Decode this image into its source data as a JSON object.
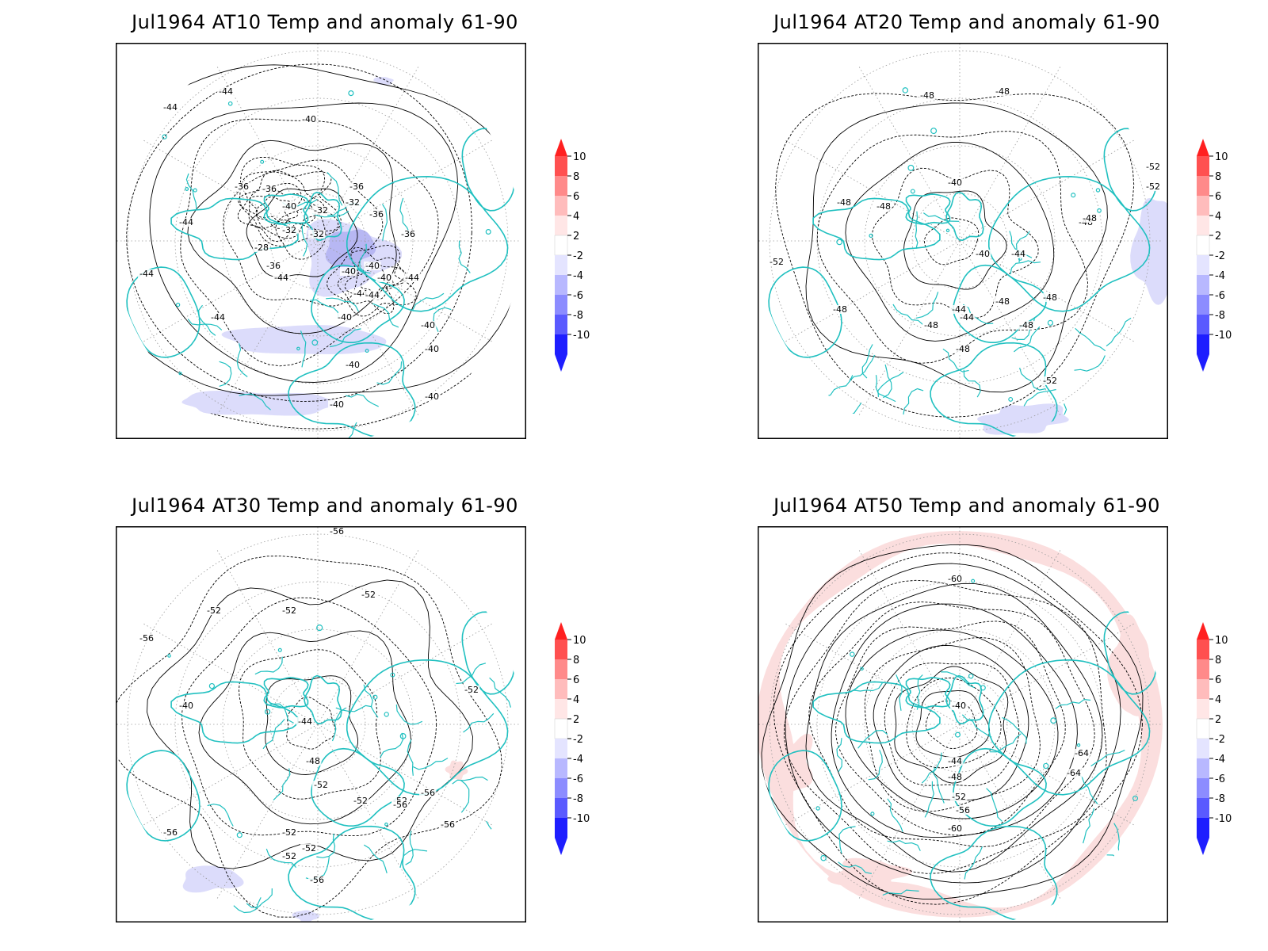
{
  "panels": [
    {
      "title": "Jul1964 AT10 Temp and anomaly 61-90",
      "contour_labels": [
        "-44",
        "-44",
        "-40",
        "-36",
        "-36",
        "-36",
        "-40",
        "-32",
        "-32",
        "-32",
        "-32",
        "-36",
        "-36",
        "-28",
        "-36",
        "-40",
        "-40",
        "-40",
        "-44",
        "-44",
        "-40",
        "-44",
        "-40",
        "-40",
        "-44",
        "-40",
        "-40",
        "-40",
        "-44",
        "-44",
        "-44"
      ],
      "anomaly_patches": [
        {
          "sign": "negative",
          "level": "-4",
          "region": "pole / Greenland"
        },
        {
          "sign": "negative",
          "level": "-2",
          "region": "North Atlantic"
        },
        {
          "sign": "negative",
          "level": "-2",
          "region": "tropical Pacific"
        }
      ]
    },
    {
      "title": "Jul1964 AT20 Temp and anomaly 61-90",
      "contour_labels": [
        "-48",
        "-48",
        "-48",
        "-40",
        "-48",
        "-40",
        "-44",
        "-48",
        "-52",
        "-52",
        "-52",
        "-48",
        "-44",
        "-44",
        "-48",
        "-48",
        "-48",
        "-48",
        "-48",
        "-48",
        "-52"
      ],
      "anomaly_patches": [
        {
          "sign": "negative",
          "level": "-2",
          "region": "Pacific rim"
        },
        {
          "sign": "negative",
          "level": "-2",
          "region": "Indian Ocean"
        }
      ]
    },
    {
      "title": "Jul1964 AT30 Temp and anomaly 61-90",
      "contour_labels": [
        "-56",
        "-52",
        "-52",
        "-52",
        "-56",
        "-52",
        "-40",
        "-44",
        "-48",
        "-52",
        "-56",
        "-52",
        "-52",
        "-52",
        "-56",
        "-56",
        "-52",
        "-52",
        "-56",
        "-56"
      ],
      "anomaly_patches": [
        {
          "sign": "negative",
          "level": "-2",
          "region": "tropical Pacific"
        },
        {
          "sign": "positive",
          "level": "2",
          "region": "central Asia"
        }
      ]
    },
    {
      "title": "Jul1964 AT50 Temp and anomaly 61-90",
      "contour_labels": [
        "-60",
        "-40",
        "-44",
        "-48",
        "-52",
        "-56",
        "-60",
        "-64",
        "-64"
      ],
      "anomaly_patches": [
        {
          "sign": "positive",
          "level": "2",
          "region": "tropics ring"
        }
      ]
    }
  ],
  "colorbar": {
    "labels": [
      "10",
      "8",
      "6",
      "4",
      "2",
      "-2",
      "-4",
      "-6",
      "-8",
      "-10"
    ],
    "colors": [
      "#ff2020",
      "#ff5050",
      "#ff8a8a",
      "#ffbcbc",
      "#ffe6e6",
      "#ffffff",
      "#e4e4ff",
      "#b8b8ff",
      "#8c8cff",
      "#5a5aff",
      "#1e1eff"
    ]
  },
  "colors": {
    "coastline": "#20c0c0",
    "contour": "#000000",
    "frame": "#000000",
    "gridline": "#9a9a9a"
  }
}
